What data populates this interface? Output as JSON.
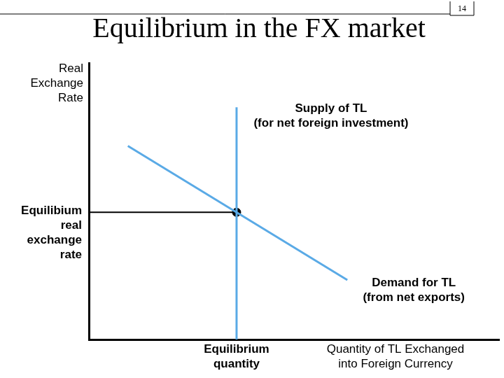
{
  "chart_data": {
    "type": "line",
    "title": "Equilibrium in the FX market",
    "page_number": "14",
    "x_label": [
      "Quantity of TL Exchanged",
      "into Foreign Currency"
    ],
    "y_label": [
      "Real",
      "Exchange",
      "Rate"
    ],
    "xlim": [
      0,
      100
    ],
    "ylim": [
      0,
      100
    ],
    "tick_labels": false,
    "grid": false,
    "series": [
      {
        "name": [
          "Supply of TL",
          "(for net foreign investment)"
        ],
        "color": "#5aaae6",
        "x": [
          36,
          36
        ],
        "values": [
          0,
          84
        ]
      },
      {
        "name": [
          "Demand for TL",
          "(from net exports)"
        ],
        "color": "#5aaae6",
        "x": [
          9.5,
          63
        ],
        "values": [
          70,
          21.5
        ]
      }
    ],
    "equilibrium": {
      "x": 36,
      "y": 46,
      "color": "#000000",
      "x_label": [
        "Equilibrium",
        "quantity"
      ],
      "y_label": [
        "Equilibium",
        "real",
        "exchange",
        "rate"
      ]
    }
  }
}
